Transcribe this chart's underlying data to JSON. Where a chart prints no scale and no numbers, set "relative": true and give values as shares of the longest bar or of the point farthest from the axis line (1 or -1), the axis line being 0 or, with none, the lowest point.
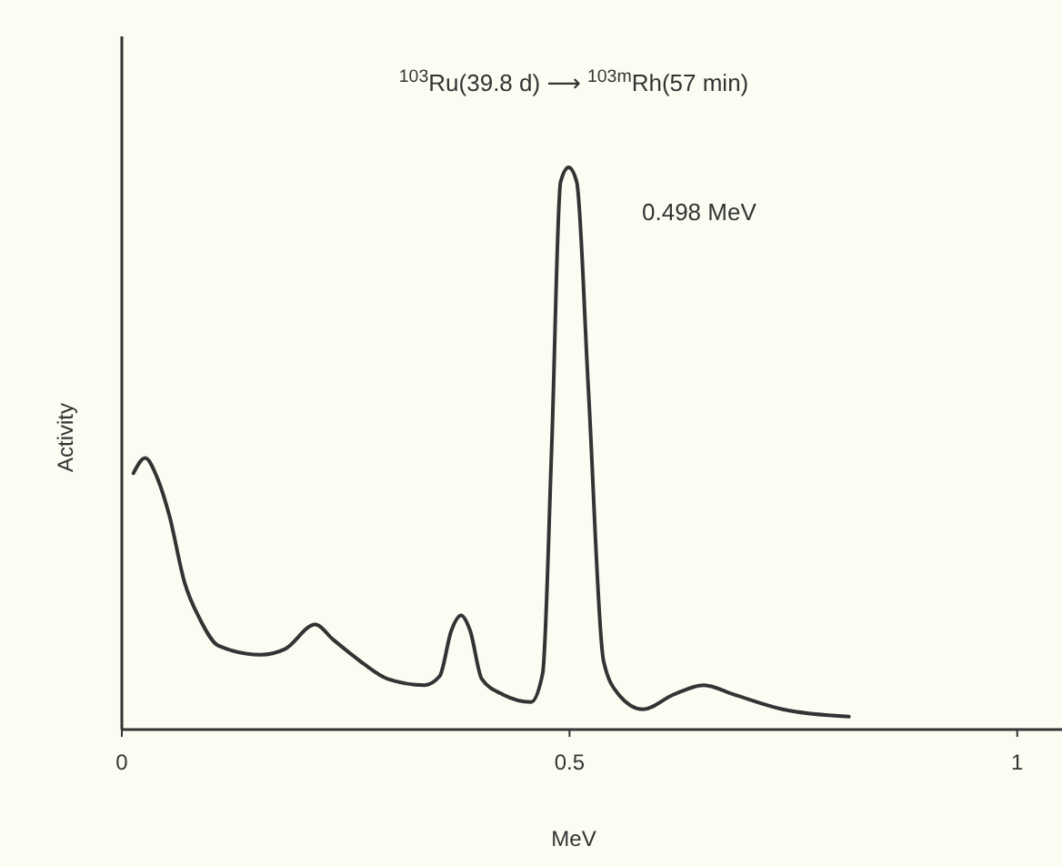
{
  "chart_data": {
    "type": "line",
    "title": "$^{103}$Ru(39.8 d) ⟶ $^{103m}$Rh(57 min)",
    "xlabel": "MeV",
    "ylabel": "Activity",
    "relative": true,
    "xlim": [
      0,
      1.05
    ],
    "xticks": [
      0,
      0.5,
      1
    ],
    "grid": false,
    "marker": "none",
    "line_style": "solid",
    "annotations": [
      "0.498 MeV"
    ],
    "series": [
      {
        "color": "#333333",
        "x": [
          0.013,
          0.026,
          0.04,
          0.053,
          0.07,
          0.087,
          0.108,
          0.155,
          0.182,
          0.216,
          0.236,
          0.257,
          0.27,
          0.297,
          0.338,
          0.355,
          0.368,
          0.379,
          0.389,
          0.402,
          0.426,
          0.457,
          0.47,
          0.48,
          0.49,
          0.499,
          0.508,
          0.521,
          0.538,
          0.555,
          0.582,
          0.616,
          0.65,
          0.684,
          0.738,
          0.812
        ],
        "values": [
          0.456,
          0.483,
          0.446,
          0.381,
          0.262,
          0.197,
          0.149,
          0.133,
          0.143,
          0.187,
          0.16,
          0.133,
          0.117,
          0.09,
          0.079,
          0.095,
          0.176,
          0.203,
          0.176,
          0.09,
          0.062,
          0.049,
          0.1,
          0.499,
          0.974,
          1,
          0.974,
          0.607,
          0.122,
          0.062,
          0.036,
          0.062,
          0.079,
          0.062,
          0.036,
          0.023
        ]
      }
    ]
  }
}
